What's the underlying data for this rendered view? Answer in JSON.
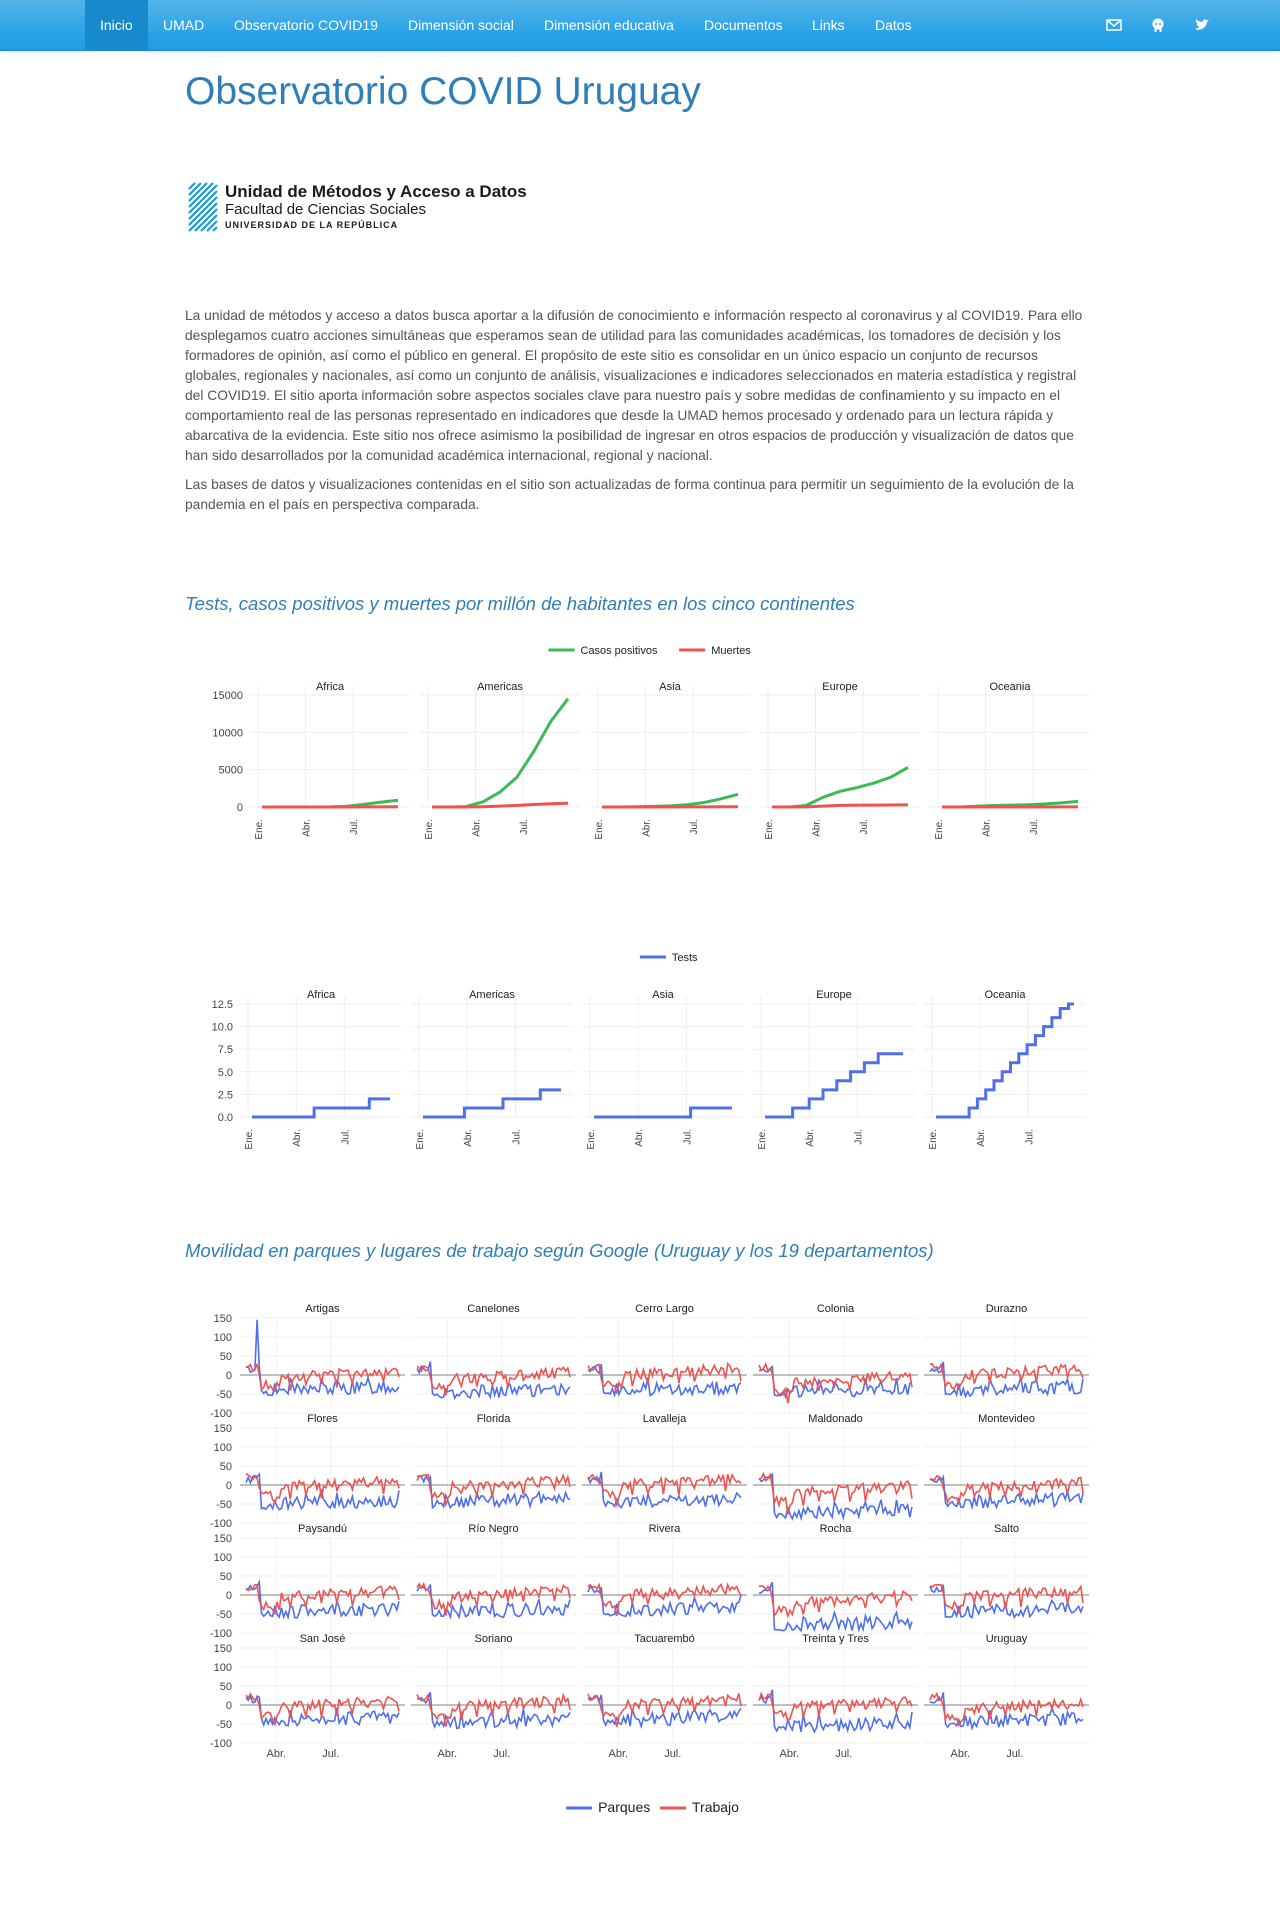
{
  "nav": {
    "items": [
      "Inicio",
      "UMAD",
      "Observatorio COVID19",
      "Dimensión social",
      "Dimensión educativa",
      "Documentos",
      "Links",
      "Datos"
    ],
    "active": "Inicio",
    "icons": [
      "envelope-icon",
      "github-icon",
      "twitter-icon"
    ]
  },
  "page": {
    "title": "Observatorio COVID Uruguay"
  },
  "logo": {
    "line1": "Unidad de Métodos y Acceso a Datos",
    "line2": "Facultad de Ciencias Sociales",
    "line3": "UNIVERSIDAD DE LA REPÚBLICA"
  },
  "intro": {
    "p1": "La unidad de métodos y acceso a datos busca aportar a la difusión de conocimiento e información respecto al coronavirus y al COVID19. Para ello desplegamos cuatro acciones simultáneas que esperamos sean de utilidad para las comunidades académicas, los tomadores de decisión y los formadores de opinión, así como el público en general. El propósito de este sitio es consolidar en un único espacio un conjunto de recursos globales, regionales y nacionales, así como un conjunto de análisis, visualizaciones e indicadores seleccionados en materia estadística y registral del COVID19. El sitio aporta información sobre aspectos sociales clave para nuestro país y sobre medidas de confinamiento y su impacto en el comportamiento real de las personas representado en indicadores que desde la UMAD hemos procesado y ordenado para un lectura rápida y abarcativa de la evidencia. Este sitio nos ofrece asimismo la posibilidad de ingresar en otros espacios de producción y visualización de datos que han sido desarrollados por la comunidad académica internacional, regional y nacional.",
    "p2": "Las bases de datos y visualizaciones contenidas en el sitio son actualizadas de forma continua para permitir un seguimiento de la evolución de la pandemia en el país en perspectiva comparada."
  },
  "sections": {
    "continents": "Tests, casos positivos y muertes por millón de habitantes en los cinco continentes",
    "mobility": "Movilidad en parques y lugares de trabajo según Google (Uruguay y los 19 departamentos)"
  },
  "chart_data": [
    {
      "type": "line",
      "legend": [
        "Casos positivos",
        "Muertes"
      ],
      "colors": [
        "#3cba54",
        "#ef5350"
      ],
      "panels": [
        "Africa",
        "Americas",
        "Asia",
        "Europe",
        "Oceania"
      ],
      "x": [
        "Ene.",
        "Feb.",
        "Mar.",
        "Abr.",
        "May.",
        "Jun.",
        "Jul.",
        "Ago.",
        "Sep."
      ],
      "xticks": [
        "Ene.",
        "Abr.",
        "Jul."
      ],
      "ylim": [
        0,
        15000
      ],
      "yticks": [
        "0",
        "5000",
        "10000",
        "15000"
      ],
      "series": {
        "Africa": {
          "Casos positivos": [
            0,
            0,
            0,
            0,
            20,
            100,
            350,
            650,
            900
          ],
          "Muertes": [
            0,
            0,
            0,
            0,
            1,
            3,
            8,
            15,
            22
          ]
        },
        "Americas": {
          "Casos positivos": [
            0,
            0,
            50,
            700,
            2000,
            4000,
            7500,
            11500,
            14500
          ],
          "Muertes": [
            0,
            0,
            2,
            40,
            120,
            220,
            330,
            430,
            500
          ]
        },
        "Asia": {
          "Casos positivos": [
            0,
            0,
            30,
            80,
            150,
            300,
            600,
            1100,
            1700
          ],
          "Muertes": [
            0,
            0,
            1,
            3,
            6,
            10,
            16,
            24,
            32
          ]
        },
        "Europe": {
          "Casos positivos": [
            0,
            0,
            200,
            1300,
            2100,
            2600,
            3200,
            4000,
            5300
          ],
          "Muertes": [
            0,
            0,
            10,
            120,
            220,
            250,
            260,
            270,
            290
          ]
        },
        "Oceania": {
          "Casos positivos": [
            0,
            0,
            100,
            200,
            250,
            300,
            400,
            550,
            750
          ],
          "Muertes": [
            0,
            0,
            1,
            3,
            4,
            5,
            6,
            8,
            10
          ]
        }
      }
    },
    {
      "type": "line",
      "legend": [
        "Tests"
      ],
      "colors": [
        "#4f6fef"
      ],
      "panels": [
        "Africa",
        "Americas",
        "Asia",
        "Europe",
        "Oceania"
      ],
      "xticks": [
        "Ene.",
        "Abr.",
        "Jul."
      ],
      "ylim": [
        0,
        12.5
      ],
      "yticks": [
        "0.0",
        "2.5",
        "5.0",
        "7.5",
        "10.0",
        "12.5"
      ],
      "series": {
        "Africa": {
          "x": [
            0,
            0.45,
            0.45,
            0.85,
            0.85,
            1.0
          ],
          "Tests": [
            0,
            0,
            1,
            1,
            2,
            2
          ]
        },
        "Americas": {
          "x": [
            0,
            0.3,
            0.3,
            0.58,
            0.58,
            0.85,
            0.85,
            1.0
          ],
          "Tests": [
            0,
            0,
            1,
            1,
            2,
            2,
            3,
            3
          ]
        },
        "Asia": {
          "x": [
            0,
            0.7,
            0.7,
            1.0
          ],
          "Tests": [
            0,
            0,
            1,
            1
          ]
        },
        "Europe": {
          "x": [
            0,
            0.2,
            0.2,
            0.32,
            0.32,
            0.42,
            0.42,
            0.52,
            0.52,
            0.62,
            0.62,
            0.72,
            0.72,
            0.82,
            0.82,
            0.92,
            0.92,
            1.0
          ],
          "Tests": [
            0,
            0,
            1,
            1,
            2,
            2,
            3,
            3,
            4,
            4,
            5,
            5,
            6,
            6,
            7,
            7,
            7,
            7
          ]
        },
        "Oceania": {
          "x": [
            0,
            0.24,
            0.24,
            0.3,
            0.3,
            0.36,
            0.36,
            0.42,
            0.42,
            0.48,
            0.48,
            0.54,
            0.54,
            0.6,
            0.6,
            0.66,
            0.66,
            0.72,
            0.72,
            0.78,
            0.78,
            0.84,
            0.84,
            0.9,
            0.9,
            0.96,
            0.96,
            1.0
          ],
          "Tests": [
            0,
            0,
            1,
            1,
            2,
            2,
            3,
            3,
            4,
            4,
            5,
            5,
            6,
            6,
            7,
            7,
            8,
            8,
            9,
            9,
            10,
            10,
            11,
            11,
            12,
            12,
            12.5,
            12.5
          ]
        }
      }
    },
    {
      "type": "line",
      "legend": [
        "Parques",
        "Trabajo"
      ],
      "colors": [
        "#4f6fef",
        "#ef5350"
      ],
      "panels": [
        "Artigas",
        "Canelones",
        "Cerro Largo",
        "Colonia",
        "Durazno",
        "Flores",
        "Florida",
        "Lavalleja",
        "Maldonado",
        "Montevideo",
        "Paysandú",
        "Río Negro",
        "Rivera",
        "Rocha",
        "Salto",
        "San José",
        "Soriano",
        "Tacuarembó",
        "Treinta y Tres",
        "Uruguay"
      ],
      "xticks": [
        "Abr.",
        "Jul."
      ],
      "ylim": [
        -100,
        150
      ],
      "yticks": [
        "150",
        "100",
        "50",
        "0",
        "-50",
        "-100"
      ],
      "park_level": [
        -40,
        -45,
        -40,
        -45,
        -40,
        -50,
        -45,
        -45,
        -75,
        -45,
        -45,
        -45,
        -40,
        -80,
        -45,
        -40,
        -45,
        -40,
        -55,
        -45
      ],
      "work_level": [
        -10,
        -15,
        -5,
        -25,
        -5,
        -10,
        -10,
        -5,
        -25,
        -15,
        -10,
        -10,
        -5,
        -25,
        -10,
        -10,
        -10,
        -5,
        -10,
        -15
      ]
    }
  ]
}
